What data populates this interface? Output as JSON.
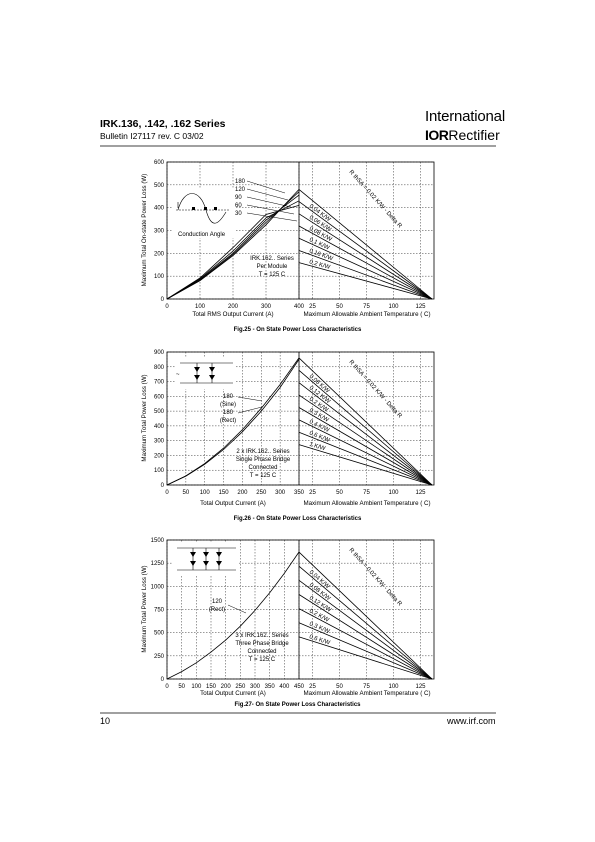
{
  "header": {
    "series": "IRK.136, .142, .162  Series",
    "bulletin": "Bulletin   I27117   rev. C   03/02",
    "logo_top": "International",
    "logo_ior": "IOR",
    "logo_rect": "Rectifier"
  },
  "footer": {
    "page": "10",
    "url": "www.irf.com"
  },
  "figures": [
    {
      "caption": "Fig.25 - On State Power Loss  Characteristics",
      "ylabel": "Maximum Total On-state Power Loss (W)",
      "xlabel_left": "Total RMS Output Current (A)",
      "xlabel_right": "Maximum  Allowable  Ambient  Temperature  ( C)",
      "yticks": [
        "0",
        "100",
        "200",
        "300",
        "400",
        "500",
        "600"
      ],
      "xticks_left": [
        "0",
        "100",
        "200",
        "300",
        "400"
      ],
      "xticks_right": [
        "25",
        "50",
        "75",
        "100",
        "125"
      ],
      "angles": [
        "180",
        "120",
        "90",
        "60",
        "30"
      ],
      "inset_label": "Conduction Angle",
      "note": [
        "IRK.162.. Series",
        "Per Module",
        "T  = 125 C"
      ],
      "rth_labels": [
        "R",
        "thSA",
        "= 0.02 K/W - Delta R",
        "0.04 K/W",
        "0.06 K/W",
        "0.08 K/W",
        "0.1 K/W",
        "0.16 K/W",
        "0.2 K/W"
      ]
    },
    {
      "caption": "Fig.26 - On State Power Loss  Characteristics",
      "ylabel": "Maximum Total Power Loss (W)",
      "xlabel_left": "Total Output Current (A)",
      "xlabel_right": "Maximum  Allowable  Ambient  Temperature  ( C)",
      "yticks": [
        "0",
        "100",
        "200",
        "300",
        "400",
        "500",
        "600",
        "700",
        "800",
        "900"
      ],
      "xticks_left": [
        "0",
        "50",
        "100",
        "150",
        "200",
        "250",
        "300",
        "350"
      ],
      "xticks_right": [
        "25",
        "50",
        "75",
        "100",
        "125"
      ],
      "curve_labels": [
        "180",
        "(Sine)",
        "180",
        "(Rect)"
      ],
      "note": [
        "2 x IRK.162.. Series",
        "Single Phase Bridge",
        "Connected",
        "T  = 125 C"
      ],
      "rth_labels": [
        "R",
        "thSA",
        "= 0.02 K/W - Delta R",
        "0.08 K/W",
        "0.12 K/W",
        "0.2 K/W",
        "0.3 K/W",
        "0.4 K/W",
        "0.6 K/W",
        "1 K/W"
      ]
    },
    {
      "caption": "Fig.27- On State Power Loss  Characteristics",
      "ylabel": "Maximum Total Power Loss (W)",
      "xlabel_left": "Total Output Current (A)",
      "xlabel_right": "Maximum  Allowable  Ambient  Temperature  ( C)",
      "yticks": [
        "0",
        "250",
        "500",
        "750",
        "1000",
        "1250",
        "1500"
      ],
      "xticks_left": [
        "0",
        "50",
        "100",
        "150",
        "200",
        "250",
        "300",
        "350",
        "400",
        "450"
      ],
      "xticks_right": [
        "25",
        "50",
        "75",
        "100",
        "125"
      ],
      "curve_labels": [
        "120",
        "(Rect)"
      ],
      "note": [
        "3 x IRK.162.. Series",
        "Three Phase Bridge",
        "Connected",
        "T  = 125 C"
      ],
      "rth_labels": [
        "R",
        "thSA",
        "= 0.02 K/W - Delta R",
        "0.04 K/W",
        "0.08 K/W",
        "0.12 K/W",
        "0.2 K/W",
        "0.3 K/W",
        "0.6 K/W"
      ]
    }
  ],
  "chart_data": [
    {
      "type": "line",
      "title": "Fig.25 - On State Power Loss  Characteristics",
      "xlabel": "Total RMS Output Current (A)",
      "ylabel": "Maximum Total On-state Power Loss (W)",
      "xlim": [
        0,
        400
      ],
      "ylim": [
        0,
        600
      ],
      "series": [
        {
          "name": "180",
          "x": [
            0,
            100,
            200,
            300,
            400
          ],
          "y": [
            0,
            80,
            190,
            325,
            480
          ]
        },
        {
          "name": "120",
          "x": [
            0,
            100,
            200,
            300,
            400
          ],
          "y": [
            0,
            82,
            195,
            335,
            470
          ]
        },
        {
          "name": "90",
          "x": [
            0,
            100,
            200,
            300,
            400
          ],
          "y": [
            0,
            85,
            200,
            345,
            455
          ]
        },
        {
          "name": "60",
          "x": [
            0,
            100,
            200,
            300,
            400
          ],
          "y": [
            0,
            88,
            210,
            355,
            430
          ]
        },
        {
          "name": "30",
          "x": [
            0,
            100,
            200,
            300,
            400
          ],
          "y": [
            0,
            92,
            225,
            370,
            410
          ]
        }
      ]
    },
    {
      "type": "line",
      "title": "Fig.26 - On State Power Loss  Characteristics",
      "xlabel": "Total Output Current (A)",
      "ylabel": "Maximum Total Power Loss (W)",
      "xlim": [
        0,
        350
      ],
      "ylim": [
        0,
        900
      ],
      "series": [
        {
          "name": "180 (Sine)",
          "x": [
            0,
            50,
            100,
            150,
            200,
            250,
            300,
            350
          ],
          "y": [
            0,
            60,
            140,
            240,
            360,
            500,
            660,
            850
          ]
        },
        {
          "name": "180 (Rect)",
          "x": [
            0,
            50,
            100,
            150,
            200,
            250,
            300,
            350
          ],
          "y": [
            0,
            62,
            145,
            250,
            375,
            520,
            680,
            860
          ]
        }
      ]
    },
    {
      "type": "line",
      "title": "Fig.27- On State Power Loss  Characteristics",
      "xlabel": "Total Output Current (A)",
      "ylabel": "Maximum Total Power Loss (W)",
      "xlim": [
        0,
        450
      ],
      "ylim": [
        0,
        1500
      ],
      "series": [
        {
          "name": "120 (Rect)",
          "x": [
            0,
            50,
            100,
            150,
            200,
            250,
            300,
            350,
            400,
            450
          ],
          "y": [
            0,
            80,
            175,
            290,
            420,
            570,
            740,
            930,
            1140,
            1370
          ]
        }
      ]
    }
  ]
}
